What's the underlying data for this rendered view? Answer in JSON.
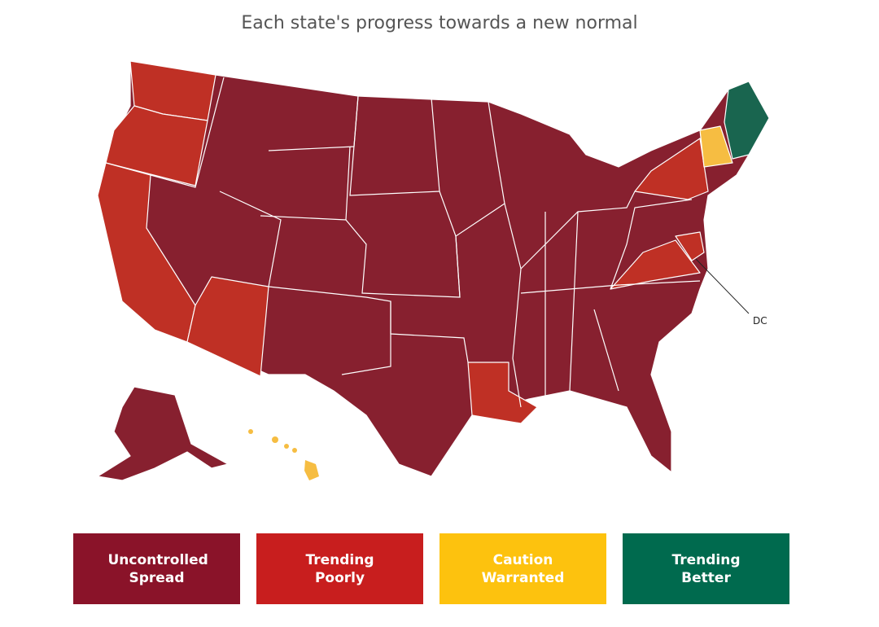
{
  "title": "Each state's progress towards a new normal",
  "map": {
    "callout": "DC"
  },
  "legend": {
    "items": [
      {
        "label": "Uncontrolled Spread",
        "color": "#8a1329"
      },
      {
        "label": "Trending Poorly",
        "color": "#c81e1e"
      },
      {
        "label": "Caution Warranted",
        "color": "#fdc20e"
      },
      {
        "label": "Trending Better",
        "color": "#006a4e"
      }
    ]
  }
}
